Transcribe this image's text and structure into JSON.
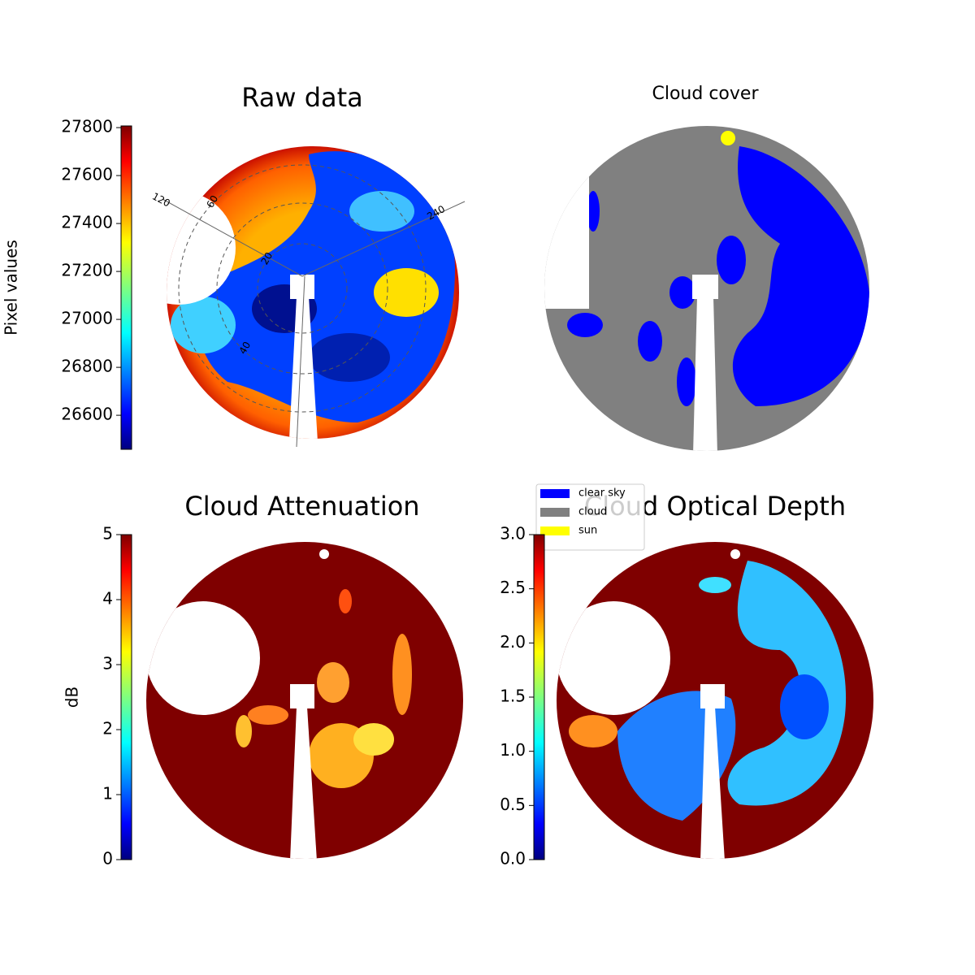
{
  "chart_data": [
    {
      "type": "image",
      "title": "Raw data",
      "colorbar": {
        "label": "Pixel values",
        "colormap": "jet",
        "ylim": [
          26458,
          27807
        ],
        "yticks": [
          26600,
          26800,
          27000,
          27200,
          27400,
          27600,
          27800
        ]
      },
      "annotations": [
        "120",
        "60",
        "240",
        "20",
        "40"
      ]
    },
    {
      "type": "image",
      "title": "Cloud cover",
      "legend": {
        "entries": [
          {
            "name": "clear sky",
            "color": "#0000ff"
          },
          {
            "name": "cloud",
            "color": "#808080"
          },
          {
            "name": "sun",
            "color": "#ffff00"
          }
        ]
      }
    },
    {
      "type": "image",
      "title": "Cloud Attenuation",
      "colorbar": {
        "label": "dB",
        "colormap": "jet",
        "ylim": [
          0,
          5
        ],
        "yticks": [
          0,
          1,
          2,
          3,
          4,
          5
        ]
      }
    },
    {
      "type": "image",
      "title": "Cloud Optical Depth",
      "colorbar": {
        "colormap": "jet",
        "ylim": [
          0,
          3
        ],
        "yticks": [
          {
            "value": 0,
            "label": "0.0"
          },
          {
            "value": 0.5,
            "label": "0.5"
          },
          {
            "value": 1,
            "label": "1.0"
          },
          {
            "value": 1.5,
            "label": "1.5"
          },
          {
            "value": 2,
            "label": "2.0"
          },
          {
            "value": 2.5,
            "label": "2.5"
          },
          {
            "value": 3,
            "label": "3.0"
          }
        ]
      }
    }
  ]
}
